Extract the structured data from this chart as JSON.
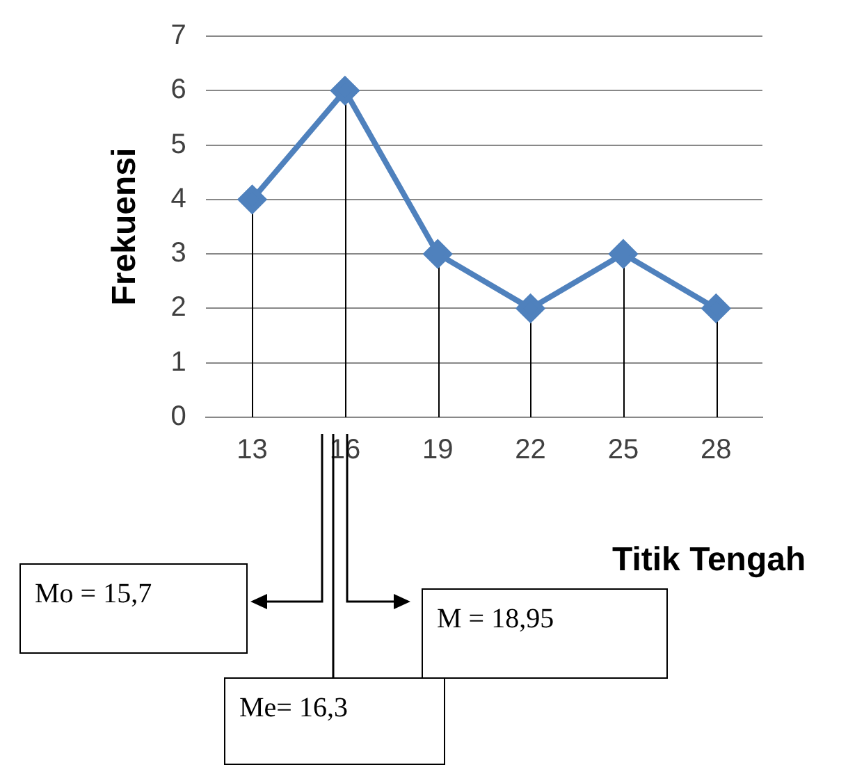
{
  "chart_data": {
    "type": "line",
    "ylabel": "Frekuensi",
    "xlabel": "Titik Tengah",
    "categories": [
      "13",
      "16",
      "19",
      "22",
      "25",
      "28"
    ],
    "series": [
      {
        "color": "#4f81bd",
        "values": [
          4,
          6,
          3,
          2,
          3,
          2
        ],
        "errors": [
          [
            0,
            4
          ],
          [
            0,
            6
          ],
          [
            0,
            3
          ],
          [
            0,
            2
          ],
          [
            0,
            3
          ],
          [
            0,
            2
          ]
        ]
      }
    ],
    "ylim": [
      0,
      7
    ],
    "yticks": [
      0,
      1,
      2,
      3,
      4,
      5,
      6,
      7
    ],
    "grid": "y",
    "legend": false,
    "marker": "diamond",
    "annotations": [
      "Mo = 15,7",
      "M = 18,95",
      "Me= 16,3"
    ]
  }
}
